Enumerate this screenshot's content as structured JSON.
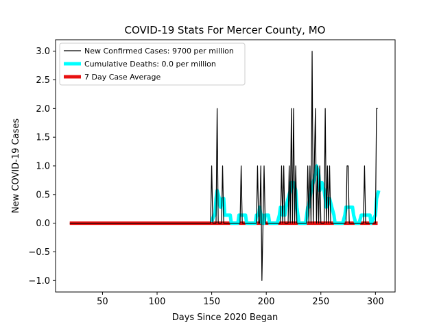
{
  "chart_data": {
    "type": "line",
    "title": "COVID-19 Stats For Mercer County, MO",
    "xlabel": "Days Since 2020 Began",
    "ylabel": "New COVID-19 Cases",
    "xlim": [
      7,
      318
    ],
    "ylim": [
      -1.2,
      3.2
    ],
    "xticks": [
      50,
      100,
      150,
      200,
      250,
      300
    ],
    "yticks": [
      -1.0,
      -0.5,
      0.0,
      0.5,
      1.0,
      1.5,
      2.0,
      2.5,
      3.0
    ],
    "grid": false,
    "legend_position": "top-left",
    "series": [
      {
        "name": "New Confirmed Cases: 9700 per million",
        "color": "#000000",
        "style": "thin",
        "points": [
          [
            20,
            0
          ],
          [
            149,
            0
          ],
          [
            150,
            1
          ],
          [
            151,
            0
          ],
          [
            154,
            0
          ],
          [
            155,
            2
          ],
          [
            156,
            0
          ],
          [
            159,
            0
          ],
          [
            160,
            1
          ],
          [
            161,
            0
          ],
          [
            176,
            0
          ],
          [
            177,
            1
          ],
          [
            178,
            0
          ],
          [
            191,
            0
          ],
          [
            192,
            1
          ],
          [
            193,
            0
          ],
          [
            194,
            0
          ],
          [
            195,
            1
          ],
          [
            196,
            -1
          ],
          [
            197,
            0
          ],
          [
            198,
            1
          ],
          [
            199,
            0
          ],
          [
            213,
            0
          ],
          [
            214,
            1
          ],
          [
            215,
            0
          ],
          [
            216,
            1
          ],
          [
            217,
            0
          ],
          [
            220,
            0
          ],
          [
            221,
            1
          ],
          [
            222,
            0
          ],
          [
            223,
            2
          ],
          [
            224,
            0
          ],
          [
            225,
            2
          ],
          [
            226,
            0
          ],
          [
            227,
            1
          ],
          [
            228,
            0
          ],
          [
            237,
            0
          ],
          [
            238,
            1
          ],
          [
            239,
            0
          ],
          [
            240,
            1
          ],
          [
            241,
            0
          ],
          [
            242,
            3
          ],
          [
            243,
            0
          ],
          [
            245,
            2
          ],
          [
            246,
            0
          ],
          [
            247,
            1
          ],
          [
            248,
            0
          ],
          [
            249,
            1
          ],
          [
            250,
            0
          ],
          [
            253,
            0
          ],
          [
            254,
            2
          ],
          [
            255,
            0
          ],
          [
            256,
            1
          ],
          [
            257,
            0
          ],
          [
            258,
            1
          ],
          [
            259,
            0
          ],
          [
            273,
            0
          ],
          [
            274,
            1
          ],
          [
            275,
            1
          ],
          [
            276,
            0
          ],
          [
            289,
            0
          ],
          [
            290,
            1
          ],
          [
            291,
            0
          ],
          [
            300,
            0
          ],
          [
            301,
            2
          ],
          [
            302,
            2
          ]
        ]
      },
      {
        "name": "Cumulative Deaths: 0.0 per million",
        "color": "#00ffff",
        "style": "thick",
        "points": [
          [
            150,
            0.02
          ],
          [
            152,
            0.14
          ],
          [
            153,
            0.14
          ],
          [
            154,
            0.43
          ],
          [
            155,
            0.57
          ],
          [
            157,
            0.43
          ],
          [
            158,
            0.28
          ],
          [
            160,
            0.43
          ],
          [
            161,
            0.43
          ],
          [
            162,
            0.14
          ],
          [
            167,
            0.14
          ],
          [
            168,
            0.0
          ],
          [
            174,
            0.0
          ],
          [
            175,
            0.14
          ],
          [
            181,
            0.14
          ],
          [
            182,
            0.0
          ],
          [
            190,
            0.0
          ],
          [
            191,
            0.14
          ],
          [
            193,
            0.14
          ],
          [
            194,
            0.28
          ],
          [
            195,
            0.14
          ],
          [
            196,
            0.0
          ],
          [
            197,
            0.14
          ],
          [
            198,
            0.0
          ],
          [
            199,
            0.14
          ],
          [
            202,
            0.14
          ],
          [
            203,
            0.0
          ],
          [
            210,
            0.0
          ],
          [
            212,
            0.14
          ],
          [
            213,
            0.28
          ],
          [
            215,
            0.14
          ],
          [
            216,
            0.28
          ],
          [
            217,
            0.14
          ],
          [
            218,
            0.28
          ],
          [
            220,
            0.43
          ],
          [
            222,
            0.57
          ],
          [
            223,
            0.71
          ],
          [
            225,
            0.71
          ],
          [
            227,
            0.57
          ],
          [
            228,
            0.28
          ],
          [
            230,
            0.0
          ],
          [
            236,
            0.0
          ],
          [
            237,
            0.14
          ],
          [
            238,
            0.28
          ],
          [
            239,
            0.28
          ],
          [
            240,
            0.43
          ],
          [
            241,
            0.57
          ],
          [
            243,
            0.71
          ],
          [
            245,
            0.86
          ],
          [
            246,
            1.0
          ],
          [
            248,
            0.86
          ],
          [
            249,
            0.57
          ],
          [
            251,
            0.71
          ],
          [
            253,
            0.57
          ],
          [
            254,
            0.43
          ],
          [
            255,
            0.28
          ],
          [
            256,
            0.43
          ],
          [
            258,
            0.43
          ],
          [
            260,
            0.28
          ],
          [
            262,
            0.14
          ],
          [
            263,
            0.0
          ],
          [
            270,
            0.0
          ],
          [
            272,
            0.14
          ],
          [
            273,
            0.28
          ],
          [
            279,
            0.28
          ],
          [
            280,
            0.14
          ],
          [
            282,
            0.0
          ],
          [
            285,
            0.0
          ],
          [
            287,
            0.14
          ],
          [
            295,
            0.14
          ],
          [
            296,
            0.0
          ],
          [
            300,
            0.14
          ],
          [
            301,
            0.43
          ],
          [
            303,
            0.57
          ]
        ]
      },
      {
        "name": "7 Day Case Average",
        "color": "#e81010",
        "style": "thick",
        "points": [
          [
            20,
            0
          ],
          [
            302,
            0
          ]
        ]
      }
    ]
  }
}
